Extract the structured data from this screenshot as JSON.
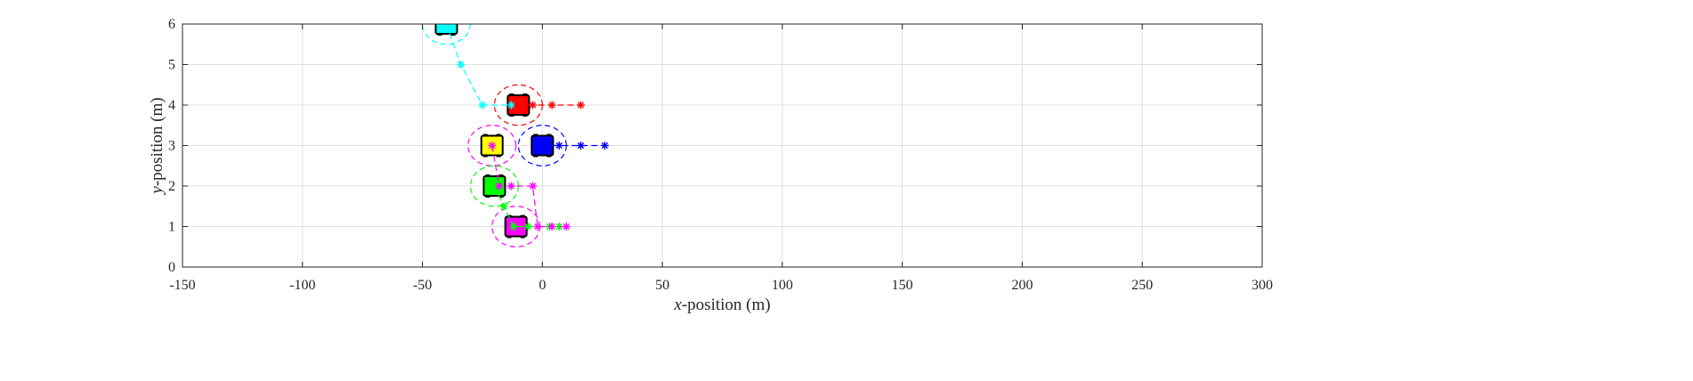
{
  "chart_data": {
    "type": "scatter",
    "title": "",
    "xlabel": {
      "var": "x",
      "rest": "-position (m)"
    },
    "ylabel": {
      "var": "y",
      "rest": "-position (m)"
    },
    "xlim": [
      -150,
      300
    ],
    "ylim": [
      0,
      6
    ],
    "xticks": [
      -150,
      -100,
      -50,
      0,
      50,
      100,
      150,
      200,
      250,
      300
    ],
    "yticks": [
      0,
      1,
      2,
      3,
      4,
      5,
      6
    ],
    "grid": true,
    "legend": "none",
    "marker": "*",
    "vehicles": [
      {
        "color": "#00ffff",
        "x": -40,
        "y": 6.0,
        "circle_dx": 10,
        "trajectory": [
          [
            -40,
            6.0
          ],
          [
            -34,
            5.0
          ],
          [
            -25,
            4.0
          ],
          [
            -13,
            4.0
          ]
        ]
      },
      {
        "color": "#ff0000",
        "x": -10,
        "y": 4.0,
        "circle_dx": 10,
        "trajectory": [
          [
            -10,
            4.0
          ],
          [
            -4,
            4.0
          ],
          [
            4,
            4.0
          ],
          [
            16,
            4.0
          ]
        ]
      },
      {
        "color": "#0000ff",
        "x": 0,
        "y": 3.0,
        "circle_dx": 10,
        "trajectory": [
          [
            0,
            3.0
          ],
          [
            7,
            3.0
          ],
          [
            16,
            3.0
          ],
          [
            26,
            3.0
          ]
        ]
      },
      {
        "color": "#ffff00",
        "x": -21,
        "y": 3.0,
        "circle_dx": 10,
        "circle_color": "#ff00ff",
        "trajectory": []
      },
      {
        "color": "#00ff00",
        "x": -20,
        "y": 2.0,
        "circle_dx": 10,
        "trajectory": [
          [
            -20,
            2.0
          ],
          [
            -16,
            1.5
          ],
          [
            -12,
            1.0
          ],
          [
            -6,
            1.0
          ],
          [
            3,
            1.0
          ],
          [
            7,
            1.0
          ]
        ]
      },
      {
        "color": "#ff00ff",
        "x": -11,
        "y": 1.0,
        "circle_dx": 10,
        "trajectory": [
          [
            -21,
            3.0
          ],
          [
            -18,
            2.0
          ],
          [
            -13,
            2.0
          ],
          [
            -4,
            2.0
          ],
          [
            -2,
            1.0
          ],
          [
            4,
            1.0
          ],
          [
            10,
            1.0
          ]
        ]
      }
    ]
  }
}
